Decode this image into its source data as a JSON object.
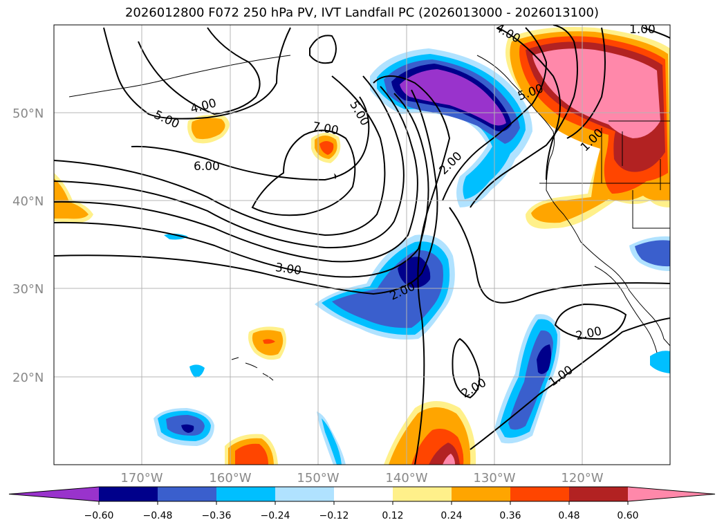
{
  "title": "2026012800 F072 250 hPa PV, IVT Landfall PC (2026013000 - 2026013100)",
  "lat_labels": [
    "50°N",
    "40°N",
    "30°N",
    "20°N"
  ],
  "lon_labels": [
    "170°W",
    "160°W",
    "150°W",
    "140°W",
    "130°W",
    "120°W"
  ],
  "contour_labels": [
    "4.00",
    "5.00",
    "6.00",
    "7.00",
    "5.00",
    "2.00",
    "3.00",
    "2.00",
    "2.00",
    "2.00",
    "1.00",
    "4.00",
    "1.00",
    "5.00",
    "1.00"
  ],
  "colorbar": {
    "ticks": [
      "−0.60",
      "−0.48",
      "−0.36",
      "−0.24",
      "−0.12",
      "0.12",
      "0.24",
      "0.36",
      "0.48",
      "0.60"
    ],
    "colors": [
      "#9933cc",
      "#00008b",
      "#3a5fcd",
      "#00bfff",
      "#b0e2ff",
      "#ffffff",
      "#fff08a",
      "#ffa500",
      "#ff4500",
      "#b22222",
      "#ff88aa"
    ]
  }
}
